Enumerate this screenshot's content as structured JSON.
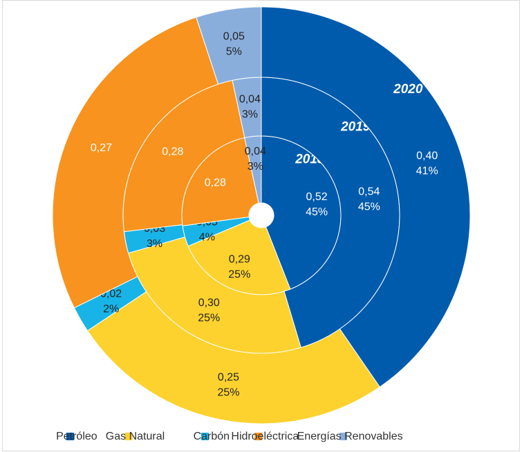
{
  "chart_data": {
    "type": "multi_doughnut",
    "categories": [
      "Petróleo",
      "Gas Natural",
      "Carbón",
      "Hidroeléctrica",
      "Energías Renovables"
    ],
    "colors": [
      "#005bac",
      "#fdd22e",
      "#18b4e8",
      "#f7931e",
      "#8aaedc"
    ],
    "series": [
      {
        "name": "2018",
        "values": [
          0.52,
          0.29,
          0.05,
          0.28,
          0.04
        ],
        "value_labels": [
          "0,52",
          "0,29",
          "0,05",
          "0,28",
          "0,04"
        ],
        "percent_labels": [
          "45%",
          "25%",
          "4%",
          null,
          "3%"
        ]
      },
      {
        "name": "2019",
        "values": [
          0.54,
          0.3,
          0.03,
          0.28,
          0.04
        ],
        "value_labels": [
          "0,54",
          "0,30",
          "0,03",
          "0,28",
          "0,04"
        ],
        "percent_labels": [
          "45%",
          "25%",
          "3%",
          null,
          "3%"
        ]
      },
      {
        "name": "2020",
        "values": [
          0.4,
          0.25,
          0.02,
          0.27,
          0.05
        ],
        "value_labels": [
          "0,40",
          "0,25",
          "0,02",
          "0,27",
          "0,05"
        ],
        "percent_labels": [
          "41%",
          "25%",
          "2%",
          null,
          "5%"
        ]
      }
    ],
    "legend": "bottom"
  }
}
